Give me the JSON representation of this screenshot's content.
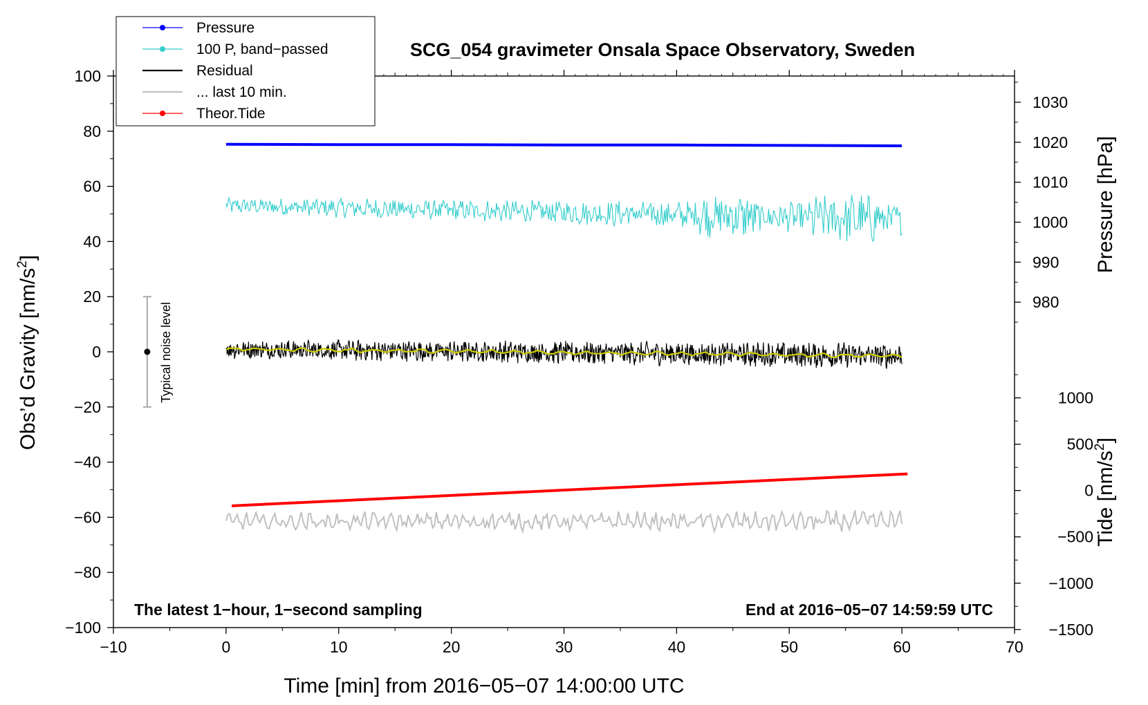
{
  "chart_data": {
    "type": "line",
    "title": "SCG_054 gravimeter Onsala Space Observatory, Sweden",
    "xlabel": "Time [min] from 2016−05−07 14:00:00 UTC",
    "ylabel": "Obs’d Gravity [nm/s",
    "ylabel_sup": "2",
    "ylabel_close": "]",
    "y2_pressure_label": "Pressure [hPa]",
    "y2_tide_label": "Tide [nm/s",
    "y2_tide_sup": "2",
    "y2_tide_close": "]",
    "xlim": [
      -10,
      70
    ],
    "ylim": [
      -100,
      100
    ],
    "x_ticks": [
      {
        "v": -10,
        "t": "−10"
      },
      {
        "v": 0,
        "t": "0"
      },
      {
        "v": 10,
        "t": "10"
      },
      {
        "v": 20,
        "t": "20"
      },
      {
        "v": 30,
        "t": "30"
      },
      {
        "v": 40,
        "t": "40"
      },
      {
        "v": 50,
        "t": "50"
      },
      {
        "v": 60,
        "t": "60"
      },
      {
        "v": 70,
        "t": "70"
      }
    ],
    "y_ticks": [
      {
        "v": 100,
        "t": "100"
      },
      {
        "v": 80,
        "t": "80"
      },
      {
        "v": 60,
        "t": "60"
      },
      {
        "v": 40,
        "t": "40"
      },
      {
        "v": 20,
        "t": "20"
      },
      {
        "v": 0,
        "t": "0"
      },
      {
        "v": -20,
        "t": "−20"
      },
      {
        "v": -40,
        "t": "−40"
      },
      {
        "v": -60,
        "t": "−60"
      },
      {
        "v": -80,
        "t": "−80"
      },
      {
        "v": -100,
        "t": "−100"
      }
    ],
    "pressure_axis": {
      "map": {
        "a": 1020,
        "b": 76,
        "c": 1000,
        "d": 47
      },
      "ticks": [
        {
          "v": 1030,
          "t": "1030"
        },
        {
          "v": 1020,
          "t": "1020"
        },
        {
          "v": 1010,
          "t": "1010"
        },
        {
          "v": 1000,
          "t": "1000"
        },
        {
          "v": 990,
          "t": "990"
        },
        {
          "v": 980,
          "t": "980"
        }
      ]
    },
    "tide_axis": {
      "map": {
        "a": 0,
        "b": -50.3,
        "c": 1000,
        "d": -16.7
      },
      "ticks": [
        {
          "v": 1000,
          "t": "1000"
        },
        {
          "v": 500,
          "t": "500"
        },
        {
          "v": 0,
          "t": "0"
        },
        {
          "v": -500,
          "t": "−500"
        },
        {
          "v": -1000,
          "t": "−1000"
        },
        {
          "v": -1500,
          "t": "−1500"
        }
      ]
    },
    "series": [
      {
        "name": "Pressure",
        "color": "#0000ff",
        "x": [
          0,
          10,
          20,
          30,
          40,
          50,
          60
        ],
        "y": [
          1019.5,
          1019.4,
          1019.4,
          1019.3,
          1019.3,
          1019.2,
          1019.1
        ],
        "axis": "pressure"
      },
      {
        "name": "100 P, band−passed",
        "color": "#33cccc",
        "x": [
          0,
          60
        ],
        "y": [
          53,
          48
        ],
        "amp": [
          2.5,
          5
        ]
      },
      {
        "name": "Residual",
        "color": "#000000",
        "x": [
          0,
          60
        ],
        "y": [
          1,
          -1.5
        ],
        "amp": [
          3,
          4
        ]
      },
      {
        "name": "... last 10 min.",
        "color": "#c0c0c0",
        "x": [
          0,
          60
        ],
        "y": [
          -61.5,
          -61.5
        ],
        "amp": [
          2.5,
          3
        ]
      },
      {
        "name": "Theor.Tide",
        "color": "#ff0000",
        "x": [
          0.5,
          60.5
        ],
        "y": [
          -165,
          180
        ],
        "axis": "tide"
      }
    ],
    "smoothed_residual": {
      "color": "#cccc00",
      "x": [
        0,
        60
      ],
      "y": [
        1,
        -1.5
      ]
    },
    "noise_bar": {
      "label": "Typical noise level",
      "x": -7,
      "center": 0,
      "low": -20,
      "high": 20
    },
    "annotations": {
      "left": "The latest 1−hour, 1−second sampling",
      "right": "End at 2016−05−07 14:59:59 UTC"
    },
    "legend": [
      {
        "label": "Pressure",
        "color": "#0000ff",
        "marker": true
      },
      {
        "label": "100 P, band−passed",
        "color": "#33cccc",
        "marker": true
      },
      {
        "label": "Residual",
        "color": "#000000",
        "marker": false
      },
      {
        "label": "... last 10 min.",
        "color": "#c0c0c0",
        "marker": false
      },
      {
        "label": "Theor.Tide",
        "color": "#ff0000",
        "marker": true
      }
    ]
  }
}
